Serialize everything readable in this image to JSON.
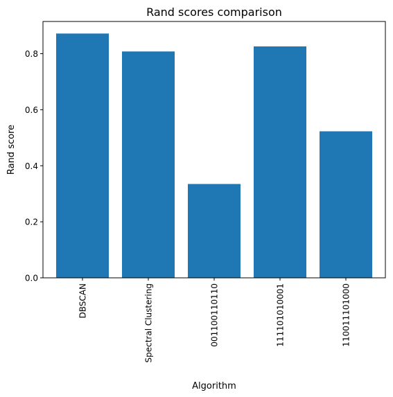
{
  "chart_data": {
    "type": "bar",
    "title": "Rand scores comparison",
    "xlabel": "Algorithm",
    "ylabel": "Rand score",
    "categories": [
      "DBSCAN",
      "Spectral Clustering",
      "001100110110",
      "111101010001",
      "110011101000"
    ],
    "values": [
      0.872,
      0.808,
      0.335,
      0.826,
      0.523
    ],
    "ylim": [
      0,
      0.915
    ],
    "yticks": [
      "0.0",
      "0.2",
      "0.4",
      "0.6",
      "0.8"
    ],
    "grid": false,
    "bar_color": "#1f77b4"
  }
}
